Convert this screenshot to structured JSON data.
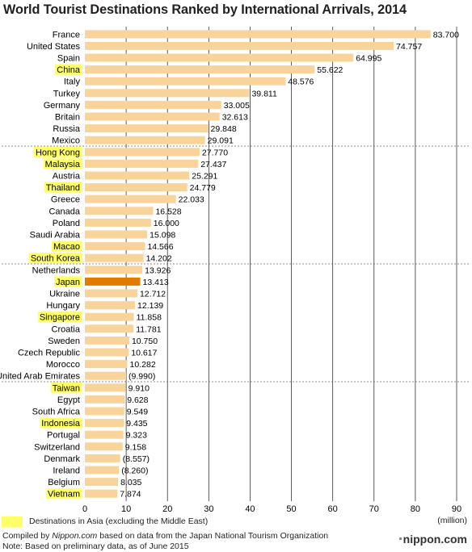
{
  "title": "World Tourist Destinations Ranked by International Arrivals, 2014",
  "chart_data": {
    "type": "bar",
    "orientation": "horizontal",
    "title": "World Tourist Destinations Ranked by International Arrivals, 2014",
    "unit_label": "(million)",
    "xlim": [
      0,
      90
    ],
    "x_ticks": [
      0,
      10,
      20,
      30,
      40,
      50,
      60,
      70,
      80,
      90
    ],
    "grid": true,
    "bar_color": "#f8d49a",
    "highlight_color": "#ffff66",
    "japan_color": "#e07b00",
    "categories": [
      {
        "name": "France",
        "value": 83.7,
        "label": "83.700",
        "asia": false
      },
      {
        "name": "United States",
        "value": 74.757,
        "label": "74.757",
        "asia": false
      },
      {
        "name": "Spain",
        "value": 64.995,
        "label": "64.995",
        "asia": false
      },
      {
        "name": "China",
        "value": 55.622,
        "label": "55.622",
        "asia": true
      },
      {
        "name": "Italy",
        "value": 48.576,
        "label": "48.576",
        "asia": false
      },
      {
        "name": "Turkey",
        "value": 39.811,
        "label": "39.811",
        "asia": false
      },
      {
        "name": "Germany",
        "value": 33.005,
        "label": "33.005",
        "asia": false
      },
      {
        "name": "Britain",
        "value": 32.613,
        "label": "32.613",
        "asia": false
      },
      {
        "name": "Russia",
        "value": 29.848,
        "label": "29.848",
        "asia": false
      },
      {
        "name": "Mexico",
        "value": 29.091,
        "label": "29.091",
        "asia": false
      },
      {
        "name": "Hong Kong",
        "value": 27.77,
        "label": "27.770",
        "asia": true
      },
      {
        "name": "Malaysia",
        "value": 27.437,
        "label": "27.437",
        "asia": true
      },
      {
        "name": "Austria",
        "value": 25.291,
        "label": "25.291",
        "asia": false
      },
      {
        "name": "Thailand",
        "value": 24.779,
        "label": "24.779",
        "asia": true
      },
      {
        "name": "Greece",
        "value": 22.033,
        "label": "22.033",
        "asia": false
      },
      {
        "name": "Canada",
        "value": 16.528,
        "label": "16.528",
        "asia": false
      },
      {
        "name": "Poland",
        "value": 16.0,
        "label": "16.000",
        "asia": false
      },
      {
        "name": "Saudi Arabia",
        "value": 15.098,
        "label": "15.098",
        "asia": false
      },
      {
        "name": "Macao",
        "value": 14.566,
        "label": "14.566",
        "asia": true
      },
      {
        "name": "South Korea",
        "value": 14.202,
        "label": "14.202",
        "asia": true
      },
      {
        "name": "Netherlands",
        "value": 13.926,
        "label": "13.926",
        "asia": false
      },
      {
        "name": "Japan",
        "value": 13.413,
        "label": "13.413",
        "asia": true,
        "emphasis": true
      },
      {
        "name": "Ukraine",
        "value": 12.712,
        "label": "12.712",
        "asia": false
      },
      {
        "name": "Hungary",
        "value": 12.139,
        "label": "12.139",
        "asia": false
      },
      {
        "name": "Singapore",
        "value": 11.858,
        "label": "11.858",
        "asia": true
      },
      {
        "name": "Croatia",
        "value": 11.781,
        "label": "11.781",
        "asia": false
      },
      {
        "name": "Sweden",
        "value": 10.75,
        "label": "10.750",
        "asia": false
      },
      {
        "name": "Czech Republic",
        "value": 10.617,
        "label": "10.617",
        "asia": false
      },
      {
        "name": "Morocco",
        "value": 10.282,
        "label": "10.282",
        "asia": false
      },
      {
        "name": "United Arab Emirates",
        "value": 9.99,
        "label": "(9.990)",
        "asia": false
      },
      {
        "name": "Taiwan",
        "value": 9.91,
        "label": "9.910",
        "asia": true
      },
      {
        "name": "Egypt",
        "value": 9.628,
        "label": "9.628",
        "asia": false
      },
      {
        "name": "South Africa",
        "value": 9.549,
        "label": "9.549",
        "asia": false
      },
      {
        "name": "Indonesia",
        "value": 9.435,
        "label": "9.435",
        "asia": true
      },
      {
        "name": "Portugal",
        "value": 9.323,
        "label": "9.323",
        "asia": false
      },
      {
        "name": "Switzerland",
        "value": 9.158,
        "label": "9.158",
        "asia": false
      },
      {
        "name": "Denmark",
        "value": 8.557,
        "label": "(8.557)",
        "asia": false
      },
      {
        "name": "Ireland",
        "value": 8.26,
        "label": "(8.260)",
        "asia": false
      },
      {
        "name": "Belgium",
        "value": 8.035,
        "label": "8.035",
        "asia": false
      },
      {
        "name": "Vietnam",
        "value": 7.874,
        "label": "7.874",
        "asia": true
      }
    ],
    "group_dividers_after": [
      10,
      20,
      30
    ]
  },
  "legend": {
    "label": "Destinations in Asia (excluding the Middle East)"
  },
  "footer": {
    "line1_prefix": "Compiled by ",
    "line1_source": "Nippon.com",
    "line1_suffix": " based on data from the Japan National Tourism Organization",
    "line2": "Note: Based on preliminary data, as of June 2015"
  },
  "brand": "nippon.com"
}
